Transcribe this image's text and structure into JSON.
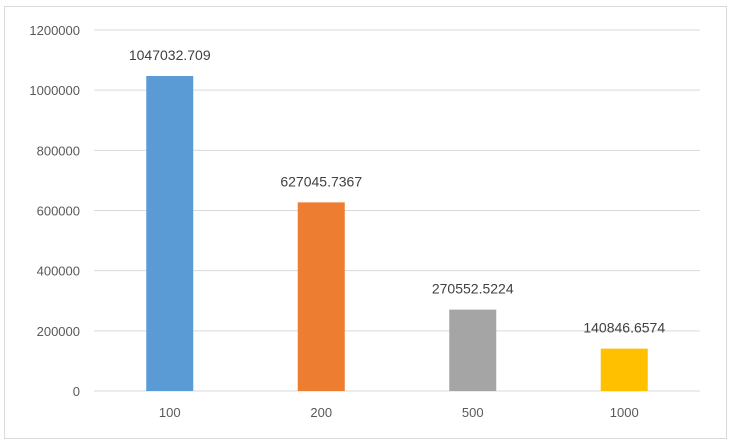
{
  "chart_data": {
    "type": "bar",
    "categories": [
      "100",
      "200",
      "500",
      "1000"
    ],
    "values": [
      1047032.709,
      627045.7367,
      270552.5224,
      140846.6574
    ],
    "value_labels": [
      "1047032.709",
      "627045.7367",
      "270552.5224",
      "140846.6574"
    ],
    "title": "",
    "xlabel": "",
    "ylabel": "",
    "ylim": [
      0,
      1200000
    ],
    "y_ticks": [
      0,
      200000,
      400000,
      600000,
      800000,
      1000000,
      1200000
    ],
    "y_tick_labels": [
      "0",
      "200000",
      "400000",
      "600000",
      "800000",
      "1000000",
      "1200000"
    ],
    "grid": true,
    "legend": "none",
    "colors": [
      "#5b9bd5",
      "#ed7d31",
      "#a5a5a5",
      "#ffc000"
    ]
  }
}
